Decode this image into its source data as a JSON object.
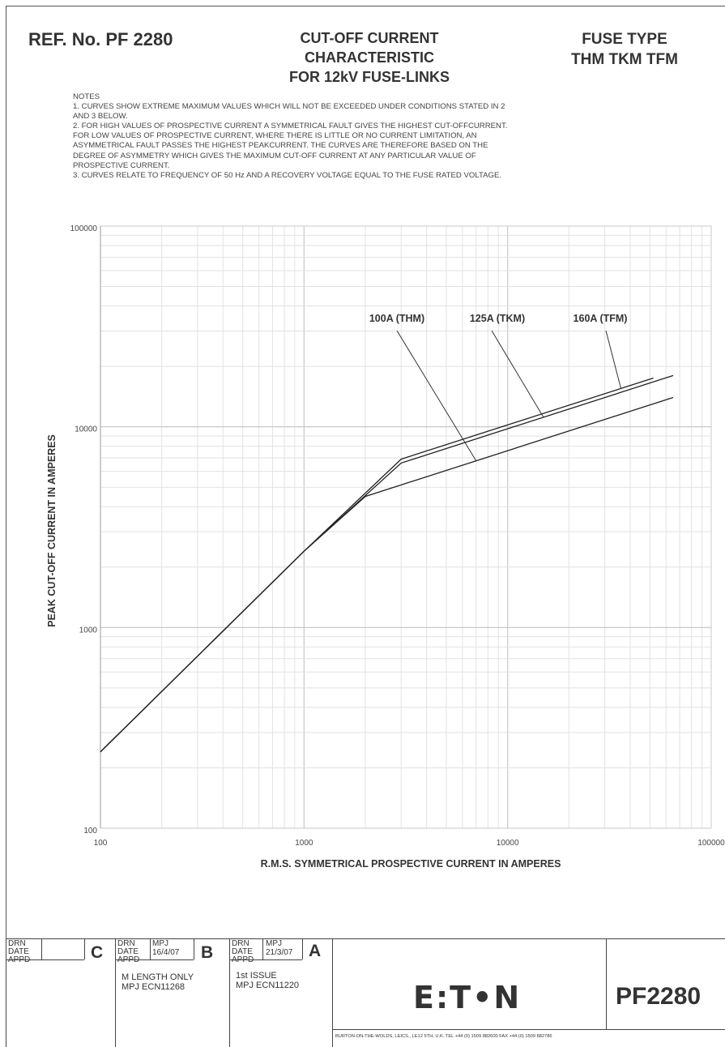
{
  "header": {
    "ref": "REF. No. PF 2280",
    "title_lines": [
      "CUT-OFF CURRENT",
      "CHARACTERISTIC",
      "FOR 12kV FUSE-LINKS"
    ],
    "fuse_type_lines": [
      "FUSE TYPE",
      "THM TKM TFM"
    ]
  },
  "notes": [
    "NOTES",
    "1. CURVES SHOW EXTREME MAXIMUM VALUES WHICH WILL NOT BE EXCEEDED UNDER CONDITIONS STATED IN 2",
    "AND 3 BELOW.",
    "2. FOR HIGH VALUES OF PROSPECTIVE CURRENT A SYMMETRICAL FAULT GIVES THE HIGHEST CUT-OFFCURRENT.",
    "FOR LOW VALUES OF PROSPECTIVE CURRENT, WHERE THERE IS LITTLE OR NO CURRENT LIMITATION, AN",
    "ASYMMETRICAL FAULT PASSES THE HIGHEST PEAKCURRENT. THE CURVES ARE THEREFORE BASED ON THE",
    "DEGREE OF ASYMMETRY WHICH GIVES THE MAXIMUM CUT-OFF CURRENT AT ANY PARTICULAR VALUE OF",
    "PROSPECTIVE CURRENT.",
    "3. CURVES RELATE TO FREQUENCY OF 50 Hz AND A RECOVERY VOLTAGE EQUAL TO THE FUSE RATED VOLTAGE."
  ],
  "chart_data": {
    "type": "line",
    "title": "CUT-OFF CURRENT CHARACTERISTIC FOR 12kV FUSE-LINKS",
    "xlabel": "R.M.S. SYMMETRICAL PROSPECTIVE CURRENT IN AMPERES",
    "ylabel": "PEAK CUT-OFF CURRENT IN AMPERES",
    "x_scale": "log",
    "y_scale": "log",
    "xlim": [
      100,
      100000
    ],
    "ylim": [
      100,
      100000
    ],
    "x_ticks": [
      "100",
      "1000",
      "10000",
      "100000"
    ],
    "y_ticks": [
      "100",
      "1000",
      "10000",
      "100000"
    ],
    "grid": true,
    "series": [
      {
        "name": "100A (THM)",
        "x": [
          100,
          1000,
          2000,
          65000
        ],
        "y": [
          240,
          2400,
          4500,
          14000
        ]
      },
      {
        "name": "125A (TKM)",
        "x": [
          100,
          1000,
          3000,
          65000
        ],
        "y": [
          240,
          2400,
          6600,
          18000
        ]
      },
      {
        "name": "160A (TFM)",
        "x": [
          100,
          1000,
          3000,
          52000
        ],
        "y": [
          240,
          2400,
          6900,
          17500
        ]
      }
    ],
    "annotations": [
      {
        "text": "100A (THM)",
        "points_to_series": "100A (THM)"
      },
      {
        "text": "125A (TKM)",
        "points_to_series": "125A (TKM)"
      },
      {
        "text": "160A (TFM)",
        "points_to_series": "160A (TFM)"
      }
    ]
  },
  "title_block": {
    "rev_c": {
      "letter": "C",
      "drn_label": "DRN",
      "date_label": "DATE",
      "appd_label": "APPD"
    },
    "rev_b": {
      "letter": "B",
      "drn_label": "DRN",
      "drn": "MPJ",
      "date_label": "DATE",
      "date": "16/4/07",
      "appd_label": "APPD",
      "desc": [
        "M LENGTH ONLY",
        "MPJ ECN11268"
      ]
    },
    "rev_a": {
      "letter": "A",
      "drn_label": "DRN",
      "drn": "MPJ",
      "date_label": "DATE",
      "date": "21/3/07",
      "appd_label": "APPD",
      "desc": [
        "1st ISSUE",
        "MPJ ECN11220"
      ]
    },
    "logo": "E:T•N",
    "drawing_number": "PF2280",
    "address": "BURTON-ON-THE-WOLDS, LEICS., LE12 5TH, U.K.  TEL  +44 (0) 1509 882600   FAX  +44 (0) 1509 882786"
  }
}
